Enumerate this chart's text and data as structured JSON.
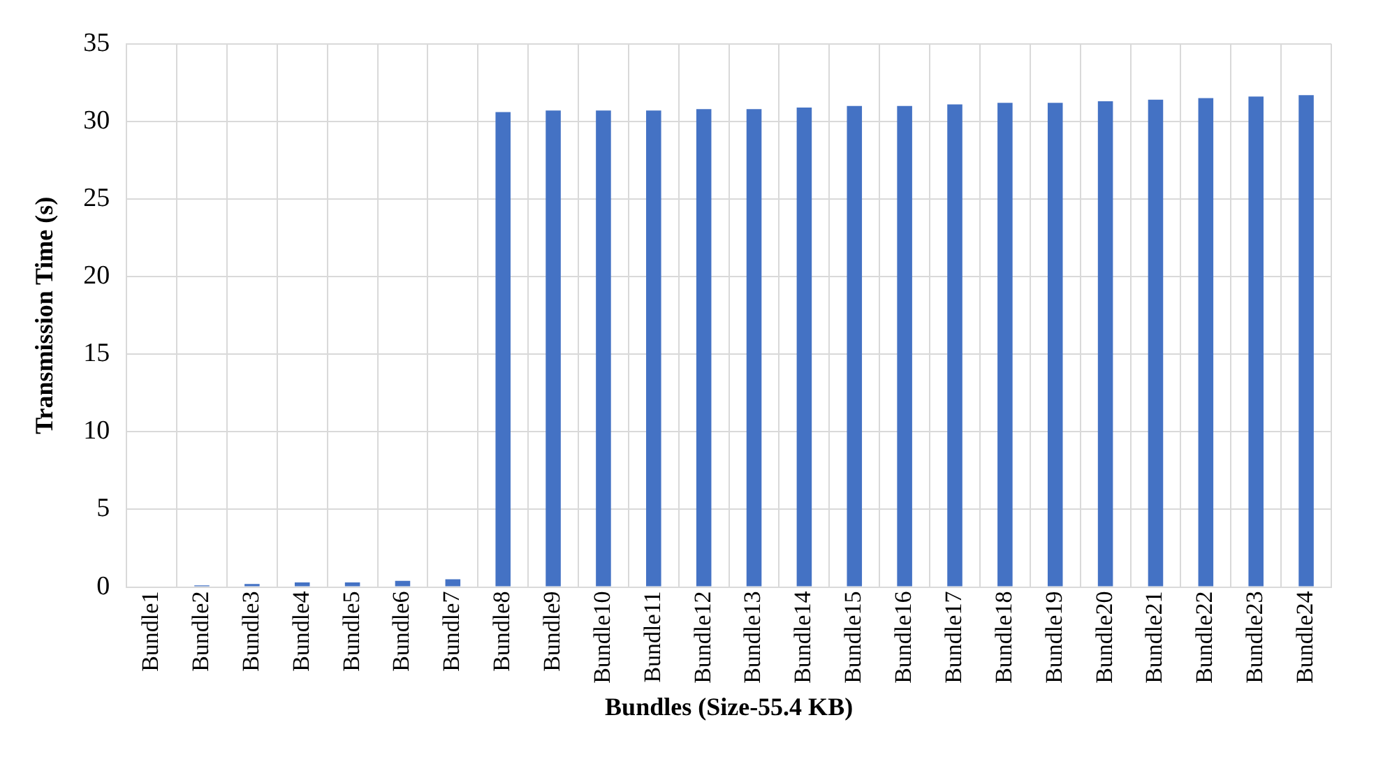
{
  "chart_data": {
    "type": "bar",
    "xlabel": "Bundles (Size-55.4 KB)",
    "ylabel": "Transmission Time (s)",
    "categories": [
      "Bundle1",
      "Bundle2",
      "Bundle3",
      "Bundle4",
      "Bundle5",
      "Bundle6",
      "Bundle7",
      "Bundle8",
      "Bundle9",
      "Bundle10",
      "Bundle11",
      "Bundle12",
      "Bundle13",
      "Bundle14",
      "Bundle15",
      "Bundle16",
      "Bundle17",
      "Bundle18",
      "Bundle19",
      "Bundle20",
      "Bundle21",
      "Bundle22",
      "Bundle23",
      "Bundle24"
    ],
    "values": [
      null,
      0.1,
      0.2,
      0.3,
      0.3,
      0.4,
      0.5,
      30.6,
      30.7,
      30.7,
      30.7,
      30.8,
      30.8,
      30.9,
      31,
      31,
      31.1,
      31.2,
      31.2,
      31.3,
      31.4,
      31.5,
      31.6,
      31.7
    ],
    "color": "#4472c4",
    "ylim": [
      0,
      35
    ],
    "yticks": [
      0,
      5,
      10,
      15,
      20,
      25,
      30,
      35
    ],
    "grid": true
  }
}
